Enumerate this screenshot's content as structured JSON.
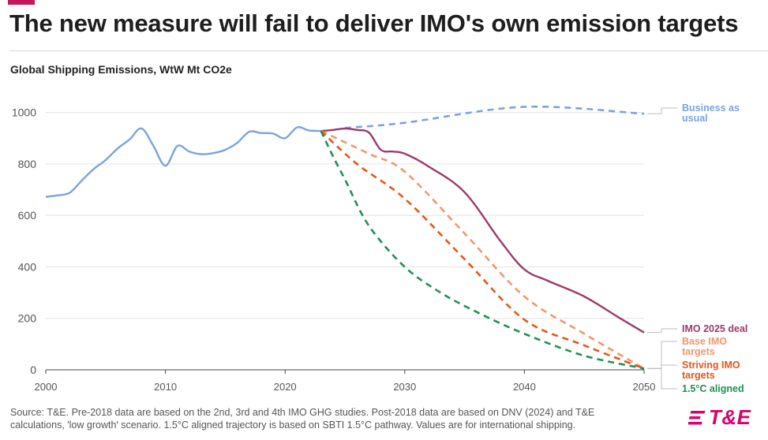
{
  "header": {
    "title": "The new measure will fail to deliver IMO's own emission targets",
    "subtitle": "Global Shipping Emissions, WtW Mt CO2e"
  },
  "footer": {
    "source_line1": "Source: T&E. Pre-2018 data are based on the 2nd, 3rd and 4th IMO GHG studies. Post-2018 data are based on DNV (2024) and T&E",
    "source_line2": "calculations, 'low growth' scenario. 1.5°C aligned trajectory is based on SBTI 1.5°C pathway. Values are for international shipping.",
    "logo_text": "T&E"
  },
  "colors": {
    "bau": "#7aa3e0",
    "imo_deal": "#9c3a6b",
    "base_imo": "#f4956a",
    "striving_imo": "#e5561a",
    "aligned": "#1f8f55",
    "brand": "#d6006e"
  },
  "chart_data": {
    "type": "line",
    "title": "The new measure will fail to deliver IMO's own emission targets",
    "ylabel": "Global Shipping Emissions, WtW Mt CO2e",
    "xlim": [
      2000,
      2050
    ],
    "ylim": [
      0,
      1100
    ],
    "xticks": [
      2000,
      2010,
      2020,
      2030,
      2040,
      2050
    ],
    "yticks": [
      0,
      200,
      400,
      600,
      800,
      1000
    ],
    "grid": "horizontal",
    "series": [
      {
        "name": "Historical",
        "label": "",
        "color": "#7aa3e0",
        "dashed": false,
        "points": [
          [
            2000,
            672
          ],
          [
            2001,
            678
          ],
          [
            2002,
            688
          ],
          [
            2003,
            735
          ],
          [
            2004,
            780
          ],
          [
            2005,
            815
          ],
          [
            2006,
            860
          ],
          [
            2007,
            895
          ],
          [
            2008,
            938
          ],
          [
            2009,
            870
          ],
          [
            2010,
            793
          ],
          [
            2011,
            870
          ],
          [
            2012,
            848
          ],
          [
            2013,
            838
          ],
          [
            2014,
            842
          ],
          [
            2015,
            855
          ],
          [
            2016,
            882
          ],
          [
            2017,
            925
          ],
          [
            2018,
            920
          ],
          [
            2019,
            918
          ],
          [
            2020,
            900
          ],
          [
            2021,
            942
          ],
          [
            2022,
            930
          ],
          [
            2023,
            928
          ]
        ]
      },
      {
        "name": "Business as usual",
        "label": "Business as usual",
        "color": "#7aa3e0",
        "dashed": true,
        "points": [
          [
            2025,
            940
          ],
          [
            2030,
            960
          ],
          [
            2040,
            1022
          ],
          [
            2050,
            995
          ]
        ]
      },
      {
        "name": "IMO 2025 deal",
        "label": "IMO 2025 deal",
        "color": "#9c3a6b",
        "dashed": false,
        "points": [
          [
            2023,
            928
          ],
          [
            2024,
            932
          ],
          [
            2025,
            938
          ],
          [
            2026,
            932
          ],
          [
            2027,
            922
          ],
          [
            2028,
            855
          ],
          [
            2029,
            848
          ],
          [
            2030,
            840
          ],
          [
            2032,
            790
          ],
          [
            2035,
            690
          ],
          [
            2038,
            500
          ],
          [
            2040,
            390
          ],
          [
            2042,
            345
          ],
          [
            2045,
            285
          ],
          [
            2048,
            200
          ],
          [
            2050,
            145
          ]
        ]
      },
      {
        "name": "Base IMO targets",
        "label": "Base IMO targets",
        "color": "#f4956a",
        "dashed": true,
        "points": [
          [
            2023,
            928
          ],
          [
            2027,
            840
          ],
          [
            2030,
            770
          ],
          [
            2035,
            530
          ],
          [
            2040,
            285
          ],
          [
            2045,
            140
          ],
          [
            2050,
            5
          ]
        ]
      },
      {
        "name": "Striving IMO targets",
        "label": "Striving IMO targets",
        "color": "#e5561a",
        "dashed": true,
        "points": [
          [
            2023,
            928
          ],
          [
            2026,
            800
          ],
          [
            2030,
            665
          ],
          [
            2035,
            430
          ],
          [
            2040,
            195
          ],
          [
            2045,
            95
          ],
          [
            2050,
            5
          ]
        ]
      },
      {
        "name": "1.5°C aligned",
        "label": "1.5°C aligned",
        "color": "#1f8f55",
        "dashed": true,
        "points": [
          [
            2023,
            928
          ],
          [
            2024,
            830
          ],
          [
            2025,
            740
          ],
          [
            2027,
            560
          ],
          [
            2030,
            400
          ],
          [
            2033,
            300
          ],
          [
            2036,
            225
          ],
          [
            2040,
            140
          ],
          [
            2045,
            55
          ],
          [
            2050,
            5
          ]
        ]
      }
    ]
  }
}
